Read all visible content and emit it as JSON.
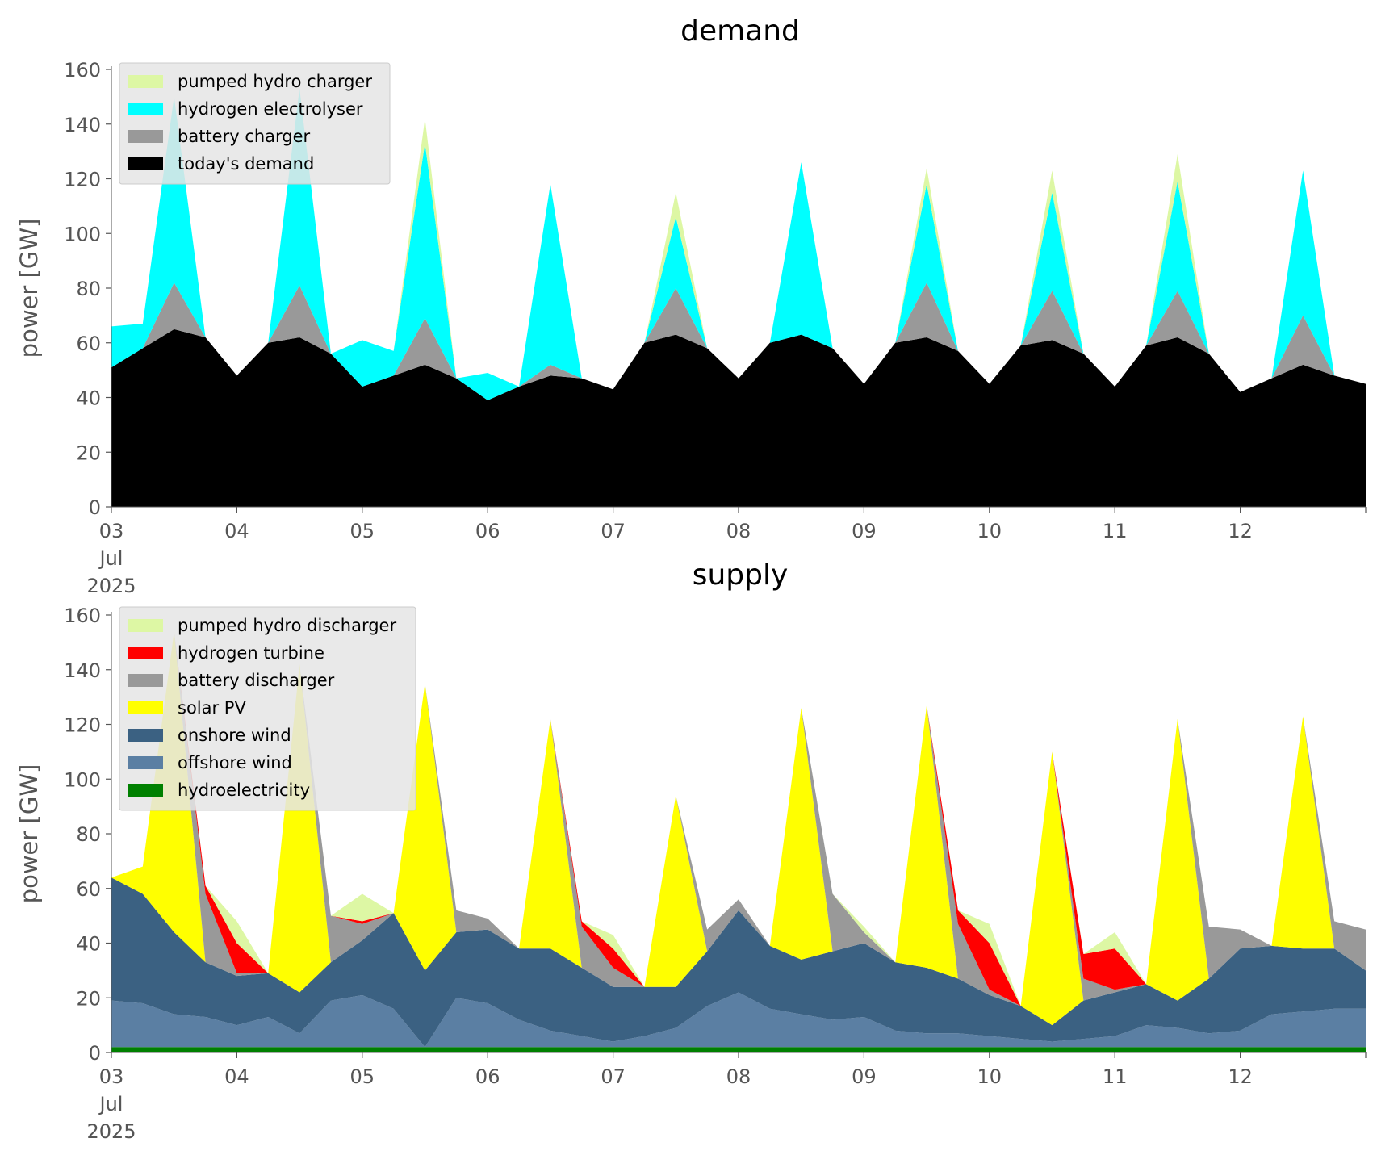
{
  "chart_data": [
    {
      "type": "area",
      "stacked": true,
      "title": "demand",
      "xlabel": "",
      "ylabel": "power [GW]",
      "ylim": [
        0,
        160
      ],
      "yticks": [
        0,
        20,
        40,
        60,
        80,
        100,
        120,
        140,
        160
      ],
      "xlim": [
        "2025-07-03",
        "2025-07-13"
      ],
      "xtick_labels": [
        "03\nJul\n2025",
        "04",
        "05",
        "06",
        "07",
        "08",
        "09",
        "10",
        "11",
        "12"
      ],
      "legend_position": "top-left",
      "grid": false,
      "x": [
        "2025-07-03 00:00",
        "2025-07-03 06:00",
        "2025-07-03 12:00",
        "2025-07-03 18:00",
        "2025-07-04 00:00",
        "2025-07-04 06:00",
        "2025-07-04 12:00",
        "2025-07-04 18:00",
        "2025-07-05 00:00",
        "2025-07-05 06:00",
        "2025-07-05 12:00",
        "2025-07-05 18:00",
        "2025-07-06 00:00",
        "2025-07-06 06:00",
        "2025-07-06 12:00",
        "2025-07-06 18:00",
        "2025-07-07 00:00",
        "2025-07-07 06:00",
        "2025-07-07 12:00",
        "2025-07-07 18:00",
        "2025-07-08 00:00",
        "2025-07-08 06:00",
        "2025-07-08 12:00",
        "2025-07-08 18:00",
        "2025-07-09 00:00",
        "2025-07-09 06:00",
        "2025-07-09 12:00",
        "2025-07-09 18:00",
        "2025-07-10 00:00",
        "2025-07-10 06:00",
        "2025-07-10 12:00",
        "2025-07-10 18:00",
        "2025-07-11 00:00",
        "2025-07-11 06:00",
        "2025-07-11 12:00",
        "2025-07-11 18:00",
        "2025-07-12 00:00",
        "2025-07-12 06:00",
        "2025-07-12 12:00",
        "2025-07-12 18:00",
        "2025-07-13 00:00"
      ],
      "series": [
        {
          "name": "today's demand",
          "color": "#000000",
          "values": [
            51,
            58,
            65,
            62,
            48,
            60,
            62,
            56,
            44,
            48,
            52,
            47,
            39,
            44,
            48,
            47,
            43,
            60,
            63,
            58,
            47,
            60,
            63,
            58,
            45,
            60,
            62,
            57,
            45,
            59,
            61,
            56,
            44,
            59,
            62,
            56,
            42,
            47,
            52,
            48,
            45
          ]
        },
        {
          "name": "battery charger",
          "color": "#999999",
          "values": [
            0,
            0,
            17,
            0,
            0,
            0,
            19,
            0,
            0,
            0,
            17,
            0,
            0,
            0,
            4,
            0,
            0,
            0,
            17,
            0,
            0,
            0,
            0,
            0,
            0,
            0,
            20,
            0,
            0,
            0,
            18,
            0,
            0,
            0,
            17,
            0,
            0,
            0,
            18,
            0,
            0
          ]
        },
        {
          "name": "hydrogen electrolyser",
          "color": "#00ffff",
          "values": [
            15,
            9,
            68,
            0,
            0,
            0,
            72,
            0,
            17,
            9,
            64,
            0,
            10,
            0,
            66,
            0,
            0,
            0,
            26,
            0,
            0,
            0,
            63,
            0,
            0,
            0,
            36,
            0,
            0,
            0,
            36,
            0,
            0,
            0,
            40,
            0,
            0,
            0,
            53,
            0,
            0
          ]
        },
        {
          "name": "pumped hydro charger",
          "color": "#ddf7a4",
          "values": [
            0,
            0,
            0,
            0,
            0,
            0,
            0,
            0,
            0,
            0,
            9,
            0,
            0,
            0,
            0,
            0,
            0,
            0,
            9,
            0,
            0,
            0,
            0,
            0,
            0,
            0,
            6,
            0,
            0,
            0,
            8,
            0,
            0,
            0,
            10,
            0,
            0,
            0,
            0,
            0,
            0
          ]
        }
      ]
    },
    {
      "type": "area",
      "stacked": true,
      "title": "supply",
      "xlabel": "",
      "ylabel": "power [GW]",
      "ylim": [
        0,
        160
      ],
      "yticks": [
        0,
        20,
        40,
        60,
        80,
        100,
        120,
        140,
        160
      ],
      "xlim": [
        "2025-07-03",
        "2025-07-13"
      ],
      "xtick_labels": [
        "03\nJul\n2025",
        "04",
        "05",
        "06",
        "07",
        "08",
        "09",
        "10",
        "11",
        "12"
      ],
      "legend_position": "top-left",
      "grid": false,
      "x": [
        "2025-07-03 00:00",
        "2025-07-03 06:00",
        "2025-07-03 12:00",
        "2025-07-03 18:00",
        "2025-07-04 00:00",
        "2025-07-04 06:00",
        "2025-07-04 12:00",
        "2025-07-04 18:00",
        "2025-07-05 00:00",
        "2025-07-05 06:00",
        "2025-07-05 12:00",
        "2025-07-05 18:00",
        "2025-07-06 00:00",
        "2025-07-06 06:00",
        "2025-07-06 12:00",
        "2025-07-06 18:00",
        "2025-07-07 00:00",
        "2025-07-07 06:00",
        "2025-07-07 12:00",
        "2025-07-07 18:00",
        "2025-07-08 00:00",
        "2025-07-08 06:00",
        "2025-07-08 12:00",
        "2025-07-08 18:00",
        "2025-07-09 00:00",
        "2025-07-09 06:00",
        "2025-07-09 12:00",
        "2025-07-09 18:00",
        "2025-07-10 00:00",
        "2025-07-10 06:00",
        "2025-07-10 12:00",
        "2025-07-10 18:00",
        "2025-07-11 00:00",
        "2025-07-11 06:00",
        "2025-07-11 12:00",
        "2025-07-11 18:00",
        "2025-07-12 00:00",
        "2025-07-12 06:00",
        "2025-07-12 12:00",
        "2025-07-12 18:00",
        "2025-07-13 00:00"
      ],
      "series": [
        {
          "name": "hydroelectricity",
          "color": "#008000",
          "values": [
            2,
            2,
            2,
            2,
            2,
            2,
            2,
            2,
            2,
            2,
            2,
            2,
            2,
            2,
            2,
            2,
            2,
            2,
            2,
            2,
            2,
            2,
            2,
            2,
            2,
            2,
            2,
            2,
            2,
            2,
            2,
            2,
            2,
            2,
            2,
            2,
            2,
            2,
            2,
            2,
            2
          ]
        },
        {
          "name": "offshore wind",
          "color": "#5b7fa3",
          "values": [
            17,
            16,
            12,
            11,
            8,
            11,
            5,
            17,
            19,
            14,
            0,
            18,
            16,
            10,
            6,
            4,
            2,
            4,
            7,
            15,
            20,
            14,
            12,
            10,
            11,
            6,
            5,
            5,
            4,
            3,
            2,
            3,
            4,
            8,
            7,
            5,
            6,
            12,
            13,
            14,
            14
          ]
        },
        {
          "name": "onshore wind",
          "color": "#3b6182",
          "values": [
            45,
            40,
            30,
            20,
            18,
            16,
            15,
            14,
            20,
            35,
            28,
            24,
            27,
            26,
            30,
            25,
            20,
            18,
            15,
            20,
            30,
            23,
            20,
            25,
            27,
            25,
            24,
            20,
            15,
            12,
            6,
            14,
            16,
            15,
            10,
            20,
            30,
            25,
            23,
            22,
            14
          ]
        },
        {
          "name": "solar PV",
          "color": "#ffff00",
          "values": [
            0,
            10,
            110,
            0,
            0,
            0,
            120,
            0,
            0,
            0,
            105,
            0,
            0,
            0,
            84,
            0,
            0,
            0,
            70,
            0,
            0,
            0,
            92,
            0,
            0,
            0,
            96,
            0,
            0,
            0,
            100,
            0,
            0,
            0,
            103,
            0,
            0,
            0,
            85,
            0,
            0
          ]
        },
        {
          "name": "battery discharger",
          "color": "#999999",
          "values": [
            0,
            0,
            0,
            25,
            1,
            0,
            0,
            17,
            6,
            0,
            0,
            8,
            4,
            0,
            0,
            15,
            7,
            0,
            0,
            8,
            4,
            0,
            0,
            21,
            4,
            0,
            0,
            20,
            2,
            0,
            0,
            8,
            1,
            0,
            0,
            19,
            7,
            0,
            0,
            10,
            15
          ]
        },
        {
          "name": "hydrogen turbine",
          "color": "#ff0000",
          "values": [
            0,
            0,
            0,
            3,
            11,
            0,
            0,
            0,
            1,
            0,
            0,
            0,
            0,
            0,
            0,
            2,
            7,
            0,
            0,
            0,
            0,
            0,
            0,
            0,
            0,
            0,
            0,
            5,
            17,
            0,
            0,
            9,
            15,
            0,
            0,
            0,
            0,
            0,
            0,
            0,
            0
          ]
        },
        {
          "name": "pumped hydro discharger",
          "color": "#ddf7a4",
          "values": [
            0,
            0,
            0,
            0,
            8,
            0,
            0,
            0,
            10,
            0,
            0,
            0,
            0,
            0,
            0,
            0,
            5,
            0,
            0,
            0,
            0,
            0,
            0,
            0,
            2,
            0,
            0,
            0,
            7,
            0,
            0,
            0,
            6,
            0,
            0,
            0,
            0,
            0,
            0,
            0,
            0
          ]
        }
      ]
    }
  ]
}
